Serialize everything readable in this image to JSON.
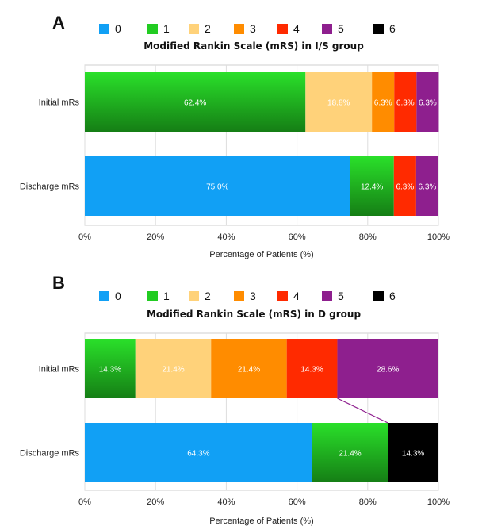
{
  "legend": {
    "items": [
      {
        "label": "0",
        "color": "#11a0f5"
      },
      {
        "label": "1",
        "color": "#22cc22"
      },
      {
        "label": "2",
        "color": "#ffd27a"
      },
      {
        "label": "3",
        "color": "#ff8c00"
      },
      {
        "label": "4",
        "color": "#ff2a00"
      },
      {
        "label": "5",
        "color": "#8e1f8e"
      },
      {
        "label": "6",
        "color": "#000000"
      }
    ]
  },
  "chart_data": [
    {
      "panel": "A",
      "type": "bar",
      "orientation": "horizontal",
      "stacked": true,
      "title": "Modified Rankin Scale (mRS) in I/S group",
      "xlabel": "Percentage of Patients (%)",
      "ylabel": "",
      "xlim": [
        0,
        100
      ],
      "xticks": [
        "0%",
        "20%",
        "40%",
        "60%",
        "80%",
        "100%"
      ],
      "grid": true,
      "legend_position": "top",
      "categories": [
        "Initial mRs",
        "Discharge mRs"
      ],
      "series": [
        {
          "name": "0",
          "values": [
            0,
            75.0
          ],
          "labels": [
            "",
            "75.0%"
          ]
        },
        {
          "name": "1",
          "values": [
            62.4,
            12.4
          ],
          "labels": [
            "62.4%",
            "12.4%"
          ]
        },
        {
          "name": "2",
          "values": [
            18.8,
            0
          ],
          "labels": [
            "18.8%",
            ""
          ]
        },
        {
          "name": "3",
          "values": [
            6.3,
            0
          ],
          "labels": [
            "6.3%",
            ""
          ]
        },
        {
          "name": "4",
          "values": [
            6.3,
            6.3
          ],
          "labels": [
            "6.3%",
            "6.3%"
          ]
        },
        {
          "name": "5",
          "values": [
            6.3,
            6.3
          ],
          "labels": [
            "6.3%",
            "6.3%"
          ]
        },
        {
          "name": "6",
          "values": [
            0,
            0
          ],
          "labels": [
            "",
            ""
          ]
        }
      ]
    },
    {
      "panel": "B",
      "type": "bar",
      "orientation": "horizontal",
      "stacked": true,
      "title": "Modified Rankin Scale (mRS) in D group",
      "xlabel": "Percentage of Patients (%)",
      "ylabel": "",
      "xlim": [
        0,
        100
      ],
      "xticks": [
        "0%",
        "20%",
        "40%",
        "60%",
        "80%",
        "100%"
      ],
      "grid": true,
      "legend_position": "top",
      "categories": [
        "Initial mRs",
        "Discharge mRs"
      ],
      "series": [
        {
          "name": "0",
          "values": [
            0,
            64.3
          ],
          "labels": [
            "",
            "64.3%"
          ]
        },
        {
          "name": "1",
          "values": [
            14.3,
            21.4
          ],
          "labels": [
            "14.3%",
            "21.4%"
          ]
        },
        {
          "name": "2",
          "values": [
            21.4,
            0
          ],
          "labels": [
            "21.4%",
            ""
          ]
        },
        {
          "name": "3",
          "values": [
            21.4,
            0
          ],
          "labels": [
            "21.4%",
            ""
          ]
        },
        {
          "name": "4",
          "values": [
            14.3,
            0
          ],
          "labels": [
            "14.3%",
            ""
          ]
        },
        {
          "name": "5",
          "values": [
            28.6,
            0
          ],
          "labels": [
            "28.6%",
            ""
          ]
        },
        {
          "name": "6",
          "values": [
            0,
            14.3
          ],
          "labels": [
            "",
            "14.3%"
          ]
        }
      ],
      "connector": {
        "from_category": "Initial mRs",
        "from_value": 71.4,
        "to_category": "Discharge mRs",
        "to_value": 85.7
      }
    }
  ]
}
